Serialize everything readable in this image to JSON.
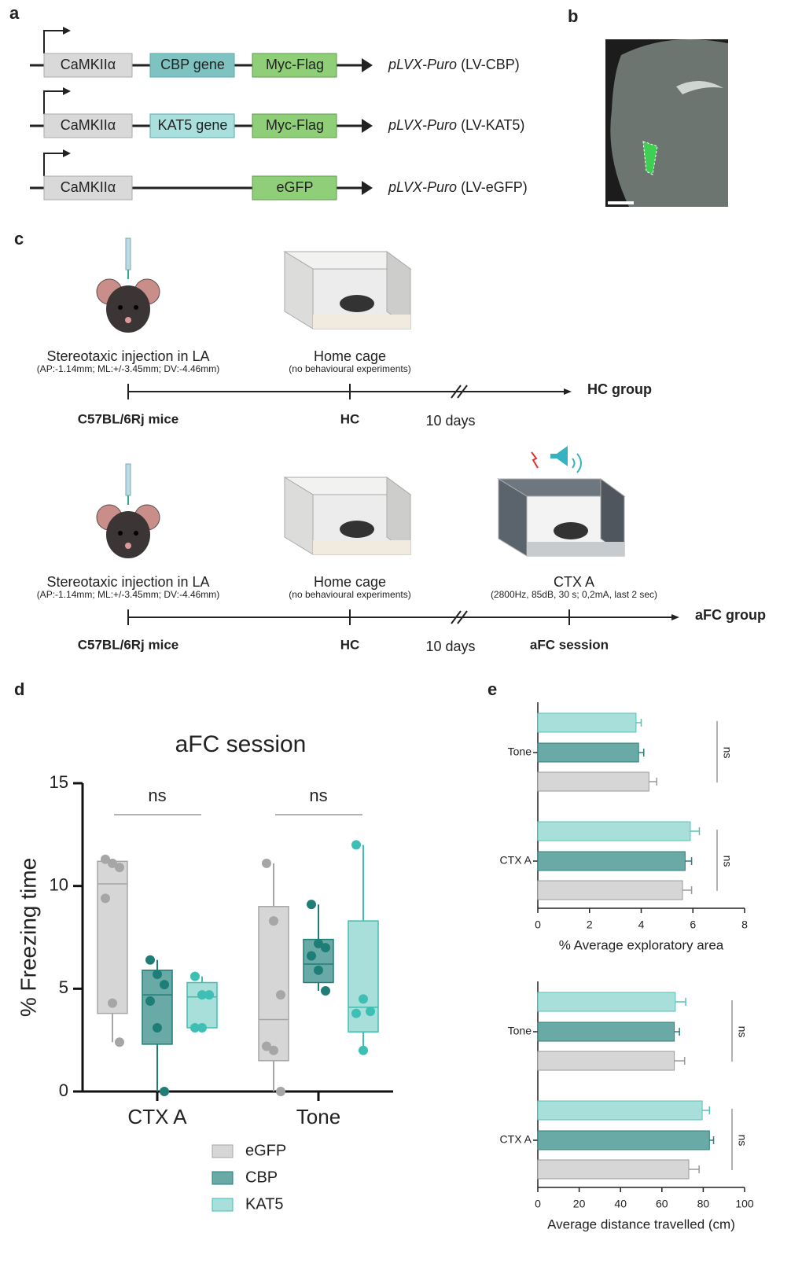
{
  "panel_a": {
    "label": "a",
    "constructs": [
      {
        "promoter": "CaMKIIα",
        "gene": "CBP gene",
        "tag": "Myc-Flag",
        "vector": "pLVX-Puro",
        "name": "(LV-CBP)"
      },
      {
        "promoter": "CaMKIIα",
        "gene": "KAT5 gene",
        "tag": "Myc-Flag",
        "vector": "pLVX-Puro",
        "name": "(LV-KAT5)"
      },
      {
        "promoter": "CaMKIIα",
        "tag": "eGFP",
        "vector": "pLVX-Puro",
        "name": "(LV-eGFP)"
      }
    ]
  },
  "panel_b": {
    "label": "b"
  },
  "panel_c": {
    "label": "c",
    "timelines": [
      {
        "stages": [
          {
            "title": "Stereotaxic injection in LA",
            "subtitle": "(AP:-1.14mm; ML:+/-3.45mm; DV:-4.46mm)",
            "axis_label": "C57BL/6Rj mice"
          },
          {
            "title": "Home cage",
            "subtitle": "(no behavioural experiments)",
            "axis_label": "HC"
          }
        ],
        "interval": "10 days",
        "group": "HC group"
      },
      {
        "stages": [
          {
            "title": "Stereotaxic injection in LA",
            "subtitle": "(AP:-1.14mm; ML:+/-3.45mm; DV:-4.46mm)",
            "axis_label": "C57BL/6Rj mice"
          },
          {
            "title": "Home cage",
            "subtitle": "(no behavioural experiments)",
            "axis_label": "HC"
          },
          {
            "title": "CTX A",
            "subtitle": "(2800Hz, 85dB, 30 s; 0,2mA, last 2 sec)",
            "axis_label": "aFC session"
          }
        ],
        "interval": "10 days",
        "group": "aFC group"
      }
    ]
  },
  "chart_data": [
    {
      "type": "box",
      "panel": "d",
      "title": "aFC session",
      "y_label": "% Freezing time",
      "categories": [
        "CTX A",
        "Tone"
      ],
      "ylim": [
        0,
        15
      ],
      "yticks": [
        0,
        5,
        10,
        15
      ],
      "annotations": [
        "ns",
        "ns"
      ],
      "series": [
        {
          "name": "eGFP",
          "color": "#a6a6a6",
          "fill": "#d6d6d6",
          "values": [
            [
              11.3,
              11.1,
              10.9,
              9.4,
              4.3,
              2.4
            ],
            [
              11.1,
              8.3,
              4.7,
              2.2,
              2.0,
              0
            ]
          ],
          "boxes": [
            {
              "min": 2.4,
              "q1": 3.8,
              "median": 10.1,
              "q3": 11.2,
              "max": 11.3
            },
            {
              "min": 0,
              "q1": 1.5,
              "median": 3.5,
              "q3": 9.0,
              "max": 11.1
            }
          ]
        },
        {
          "name": "CBP",
          "color": "#1f7d78",
          "fill": "#6aaaa6",
          "values": [
            [
              6.4,
              5.7,
              5.2,
              4.4,
              3.1,
              0
            ],
            [
              9.1,
              7.2,
              7.0,
              6.6,
              5.9,
              4.9
            ]
          ],
          "boxes": [
            {
              "min": 0,
              "q1": 2.3,
              "median": 4.7,
              "q3": 5.9,
              "max": 6.4
            },
            {
              "min": 4.9,
              "q1": 5.3,
              "median": 6.2,
              "q3": 7.4,
              "max": 9.1
            }
          ]
        },
        {
          "name": "KAT5",
          "color": "#3dbfb3",
          "fill": "#a8dfda",
          "values": [
            [
              5.6,
              4.7,
              4.7,
              3.1,
              3.1
            ],
            [
              12.0,
              4.5,
              3.9,
              3.8,
              2.0
            ]
          ],
          "boxes": [
            {
              "min": 3.1,
              "q1": 3.1,
              "median": 4.6,
              "q3": 5.3,
              "max": 5.6
            },
            {
              "min": 2.0,
              "q1": 2.9,
              "median": 4.1,
              "q3": 8.3,
              "max": 12.0
            }
          ]
        }
      ]
    },
    {
      "type": "hbar",
      "panel": "e",
      "x_label": "% Average exploratory area",
      "categories": [
        "Tone",
        "CTX A"
      ],
      "xlim": [
        0,
        8
      ],
      "xticks": [
        0,
        2,
        4,
        6,
        8
      ],
      "annotations": [
        "ns",
        "ns"
      ],
      "series": [
        {
          "name": "eGFP",
          "color": "#d6d6d6",
          "values": [
            4.3,
            5.6
          ],
          "errors": [
            0.3,
            0.35
          ]
        },
        {
          "name": "CBP",
          "color": "#6aaaa6",
          "values": [
            3.9,
            5.7
          ],
          "errors": [
            0.2,
            0.25
          ]
        },
        {
          "name": "KAT5",
          "color": "#a8dfda",
          "values": [
            3.8,
            5.9
          ],
          "errors": [
            0.2,
            0.35
          ]
        }
      ]
    },
    {
      "type": "hbar",
      "x_label": "Average distance travelled (cm)",
      "categories": [
        "Tone",
        "CTX A"
      ],
      "xlim": [
        0,
        100
      ],
      "xticks": [
        0,
        20,
        40,
        60,
        80,
        100
      ],
      "annotations": [
        "ns",
        "ns"
      ],
      "series": [
        {
          "name": "eGFP",
          "color": "#d6d6d6",
          "values": [
            66,
            73
          ],
          "errors": [
            5,
            5
          ]
        },
        {
          "name": "CBP",
          "color": "#6aaaa6",
          "values": [
            66,
            83
          ],
          "errors": [
            2.5,
            2
          ]
        },
        {
          "name": "KAT5",
          "color": "#a8dfda",
          "values": [
            66.5,
            79.5
          ],
          "errors": [
            5,
            3.5
          ]
        }
      ]
    }
  ]
}
